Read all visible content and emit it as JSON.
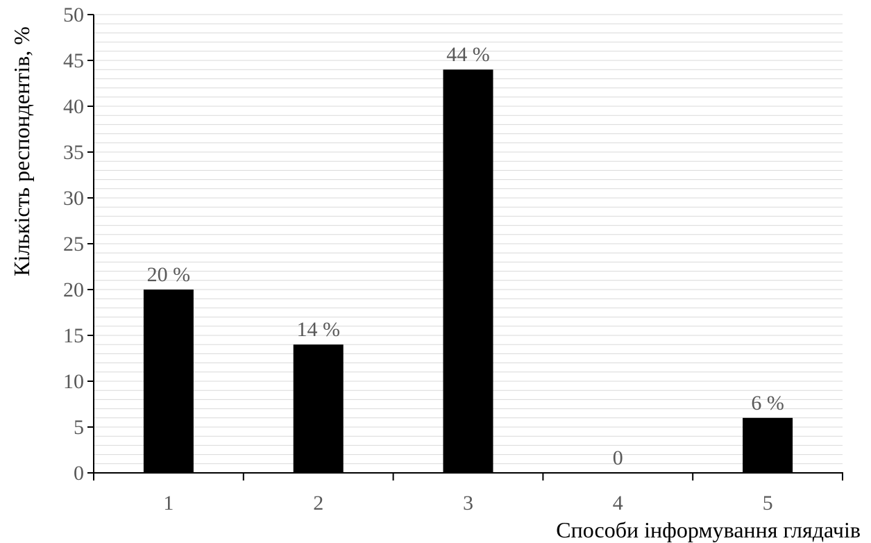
{
  "chart_data": {
    "type": "bar",
    "categories": [
      "1",
      "2",
      "3",
      "4",
      "5"
    ],
    "values": [
      20,
      14,
      44,
      0,
      6
    ],
    "data_labels": [
      "20 %",
      "14 %",
      "44 %",
      "0",
      "6 %"
    ],
    "ylabel": "Кількість  респондентів, %",
    "xlabel": "Способи інформування глядачів",
    "ylim": [
      0,
      50
    ],
    "yticks": [
      0,
      5,
      10,
      15,
      20,
      25,
      30,
      35,
      40,
      45,
      50
    ],
    "minor_grid_step": 1,
    "grid": true,
    "colors": {
      "bar": "#000000",
      "axis": "#000000",
      "grid": "#d9d9d9",
      "text": "#595959"
    }
  }
}
